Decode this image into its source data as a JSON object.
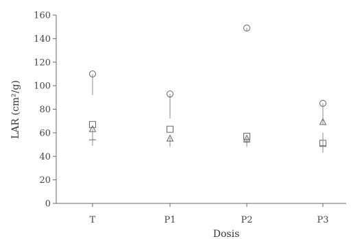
{
  "chart_data": {
    "type": "scatter",
    "xlabel": "Dosis",
    "ylabel": "LAR (cm²/g)",
    "categories": [
      "T",
      "P1",
      "P2",
      "P3"
    ],
    "ylim": [
      0,
      160
    ],
    "yticks": [
      0,
      20,
      40,
      60,
      80,
      100,
      120,
      140,
      160
    ],
    "grid": false,
    "series": [
      {
        "marker": "circle",
        "values": [
          110,
          93,
          149,
          85
        ],
        "err_low": [
          92,
          72,
          146,
          67
        ],
        "err_high": [
          110,
          93,
          149,
          85
        ]
      },
      {
        "marker": "square",
        "values": [
          67,
          63,
          57,
          51
        ],
        "err_low": [
          67,
          63,
          57,
          43
        ],
        "err_high": [
          67,
          63,
          57,
          51
        ]
      },
      {
        "marker": "triangle",
        "values": [
          63,
          55,
          55,
          69
        ],
        "err_low": [
          63,
          55,
          55,
          69
        ],
        "err_high": [
          63,
          55,
          55,
          69
        ]
      },
      {
        "marker": "plus",
        "values": [
          54,
          53,
          52,
          49
        ],
        "err_low": [
          49,
          48,
          48,
          45
        ],
        "err_high": [
          63,
          56,
          56,
          60
        ]
      }
    ]
  }
}
